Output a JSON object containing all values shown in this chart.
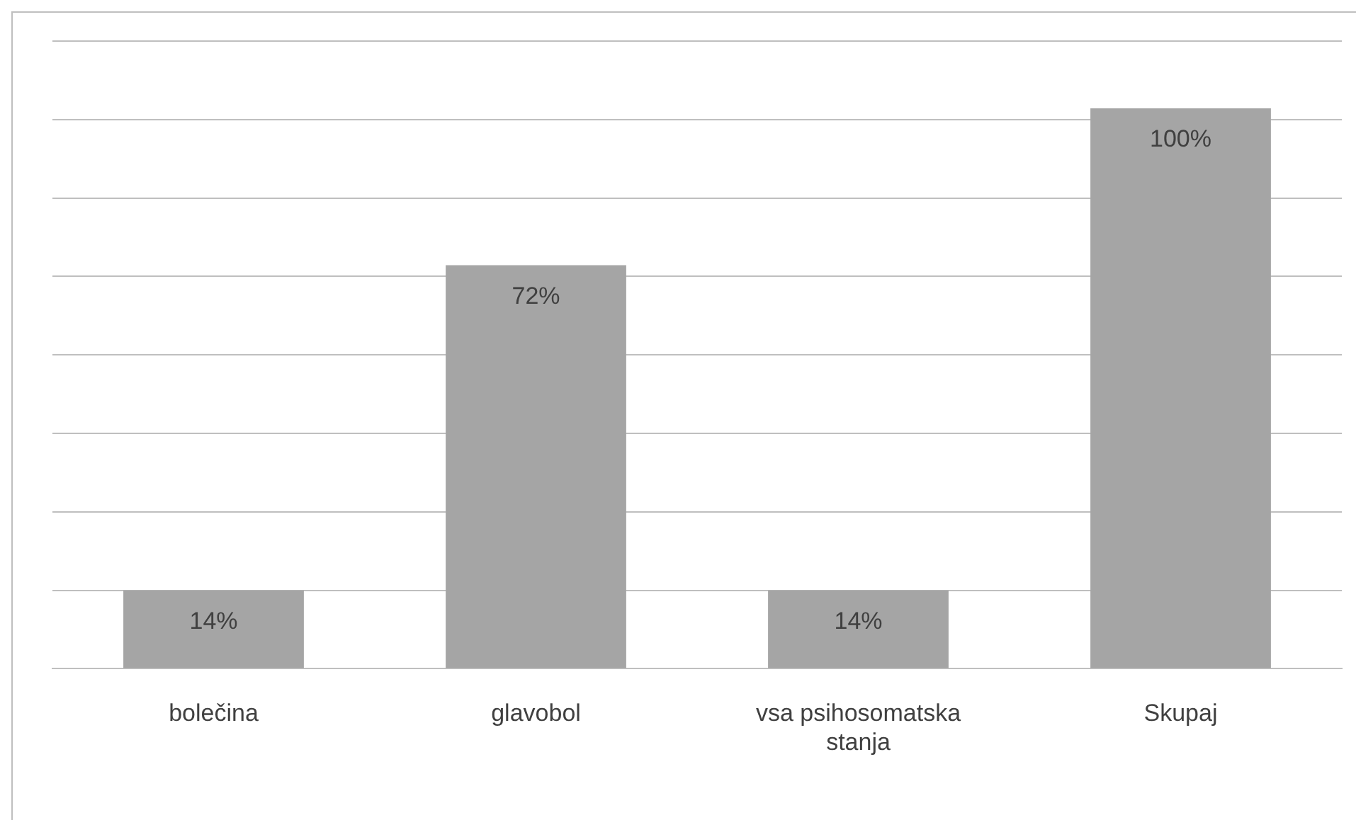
{
  "chart_data": {
    "type": "bar",
    "categories": [
      "bolečina",
      "glavobol",
      "vsa psihosomatska stanja",
      "Skupaj"
    ],
    "values": [
      14,
      72,
      14,
      100
    ],
    "color": "#a5a5a5",
    "value_labels": [
      "14%",
      "72%",
      "14%",
      "100%"
    ],
    "ylim": [
      0,
      112
    ],
    "yticks": [
      {
        "value": 0,
        "label": null
      },
      {
        "value": 14,
        "label": null
      },
      {
        "value": 28,
        "label": null
      },
      {
        "value": 42,
        "label": null
      },
      {
        "value": 56,
        "label": null
      },
      {
        "value": 70,
        "label": null
      },
      {
        "value": 84,
        "label": null
      },
      {
        "value": 98,
        "label": null
      },
      {
        "value": 112,
        "label": null
      }
    ],
    "grid": "y",
    "tick_labels": "x",
    "legend": false
  }
}
